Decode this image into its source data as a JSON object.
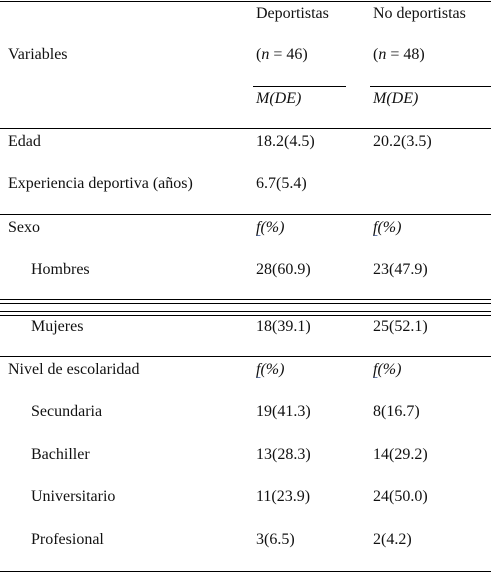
{
  "header": {
    "variables": "Variables",
    "col1": {
      "title": "Deportistas",
      "n_prefix": "(",
      "n_var": "n",
      "n_value": " = 46)",
      "stat": "M(DE)"
    },
    "col2": {
      "title": "No deportistas",
      "n_prefix": "(",
      "n_var": "n",
      "n_value": " = 48)",
      "stat": "M(DE)"
    }
  },
  "rows": {
    "edad": {
      "label": "Edad",
      "c1": "18.2(4.5)",
      "c2": "20.2(3.5)"
    },
    "experiencia": {
      "label": "Experiencia deportiva (años)",
      "c1": "6.7(5.4)",
      "c2": ""
    },
    "sexo": {
      "label": "Sexo",
      "f_letter": "f",
      "f_rest": "(%)"
    },
    "hombres": {
      "label": "Hombres",
      "c1": "28(60.9)",
      "c2": "23(47.9)"
    },
    "mujeres": {
      "label": "Mujeres",
      "c1": "18(39.1)",
      "c2": "25(52.1)"
    },
    "escolaridad": {
      "label": "Nivel de escolaridad",
      "f_letter": "f",
      "f_rest": "(%)"
    },
    "secundaria": {
      "label": "Secundaria",
      "c1": "19(41.3)",
      "c2": "8(16.7)"
    },
    "bachiller": {
      "label": "Bachiller",
      "c1": "13(28.3)",
      "c2": "14(29.2)"
    },
    "universitario": {
      "label": "Universitario",
      "c1": "11(23.9)",
      "c2": "24(50.0)"
    },
    "profesional": {
      "label": "Profesional",
      "c1": "3(6.5)",
      "c2": "2(4.2)"
    }
  }
}
